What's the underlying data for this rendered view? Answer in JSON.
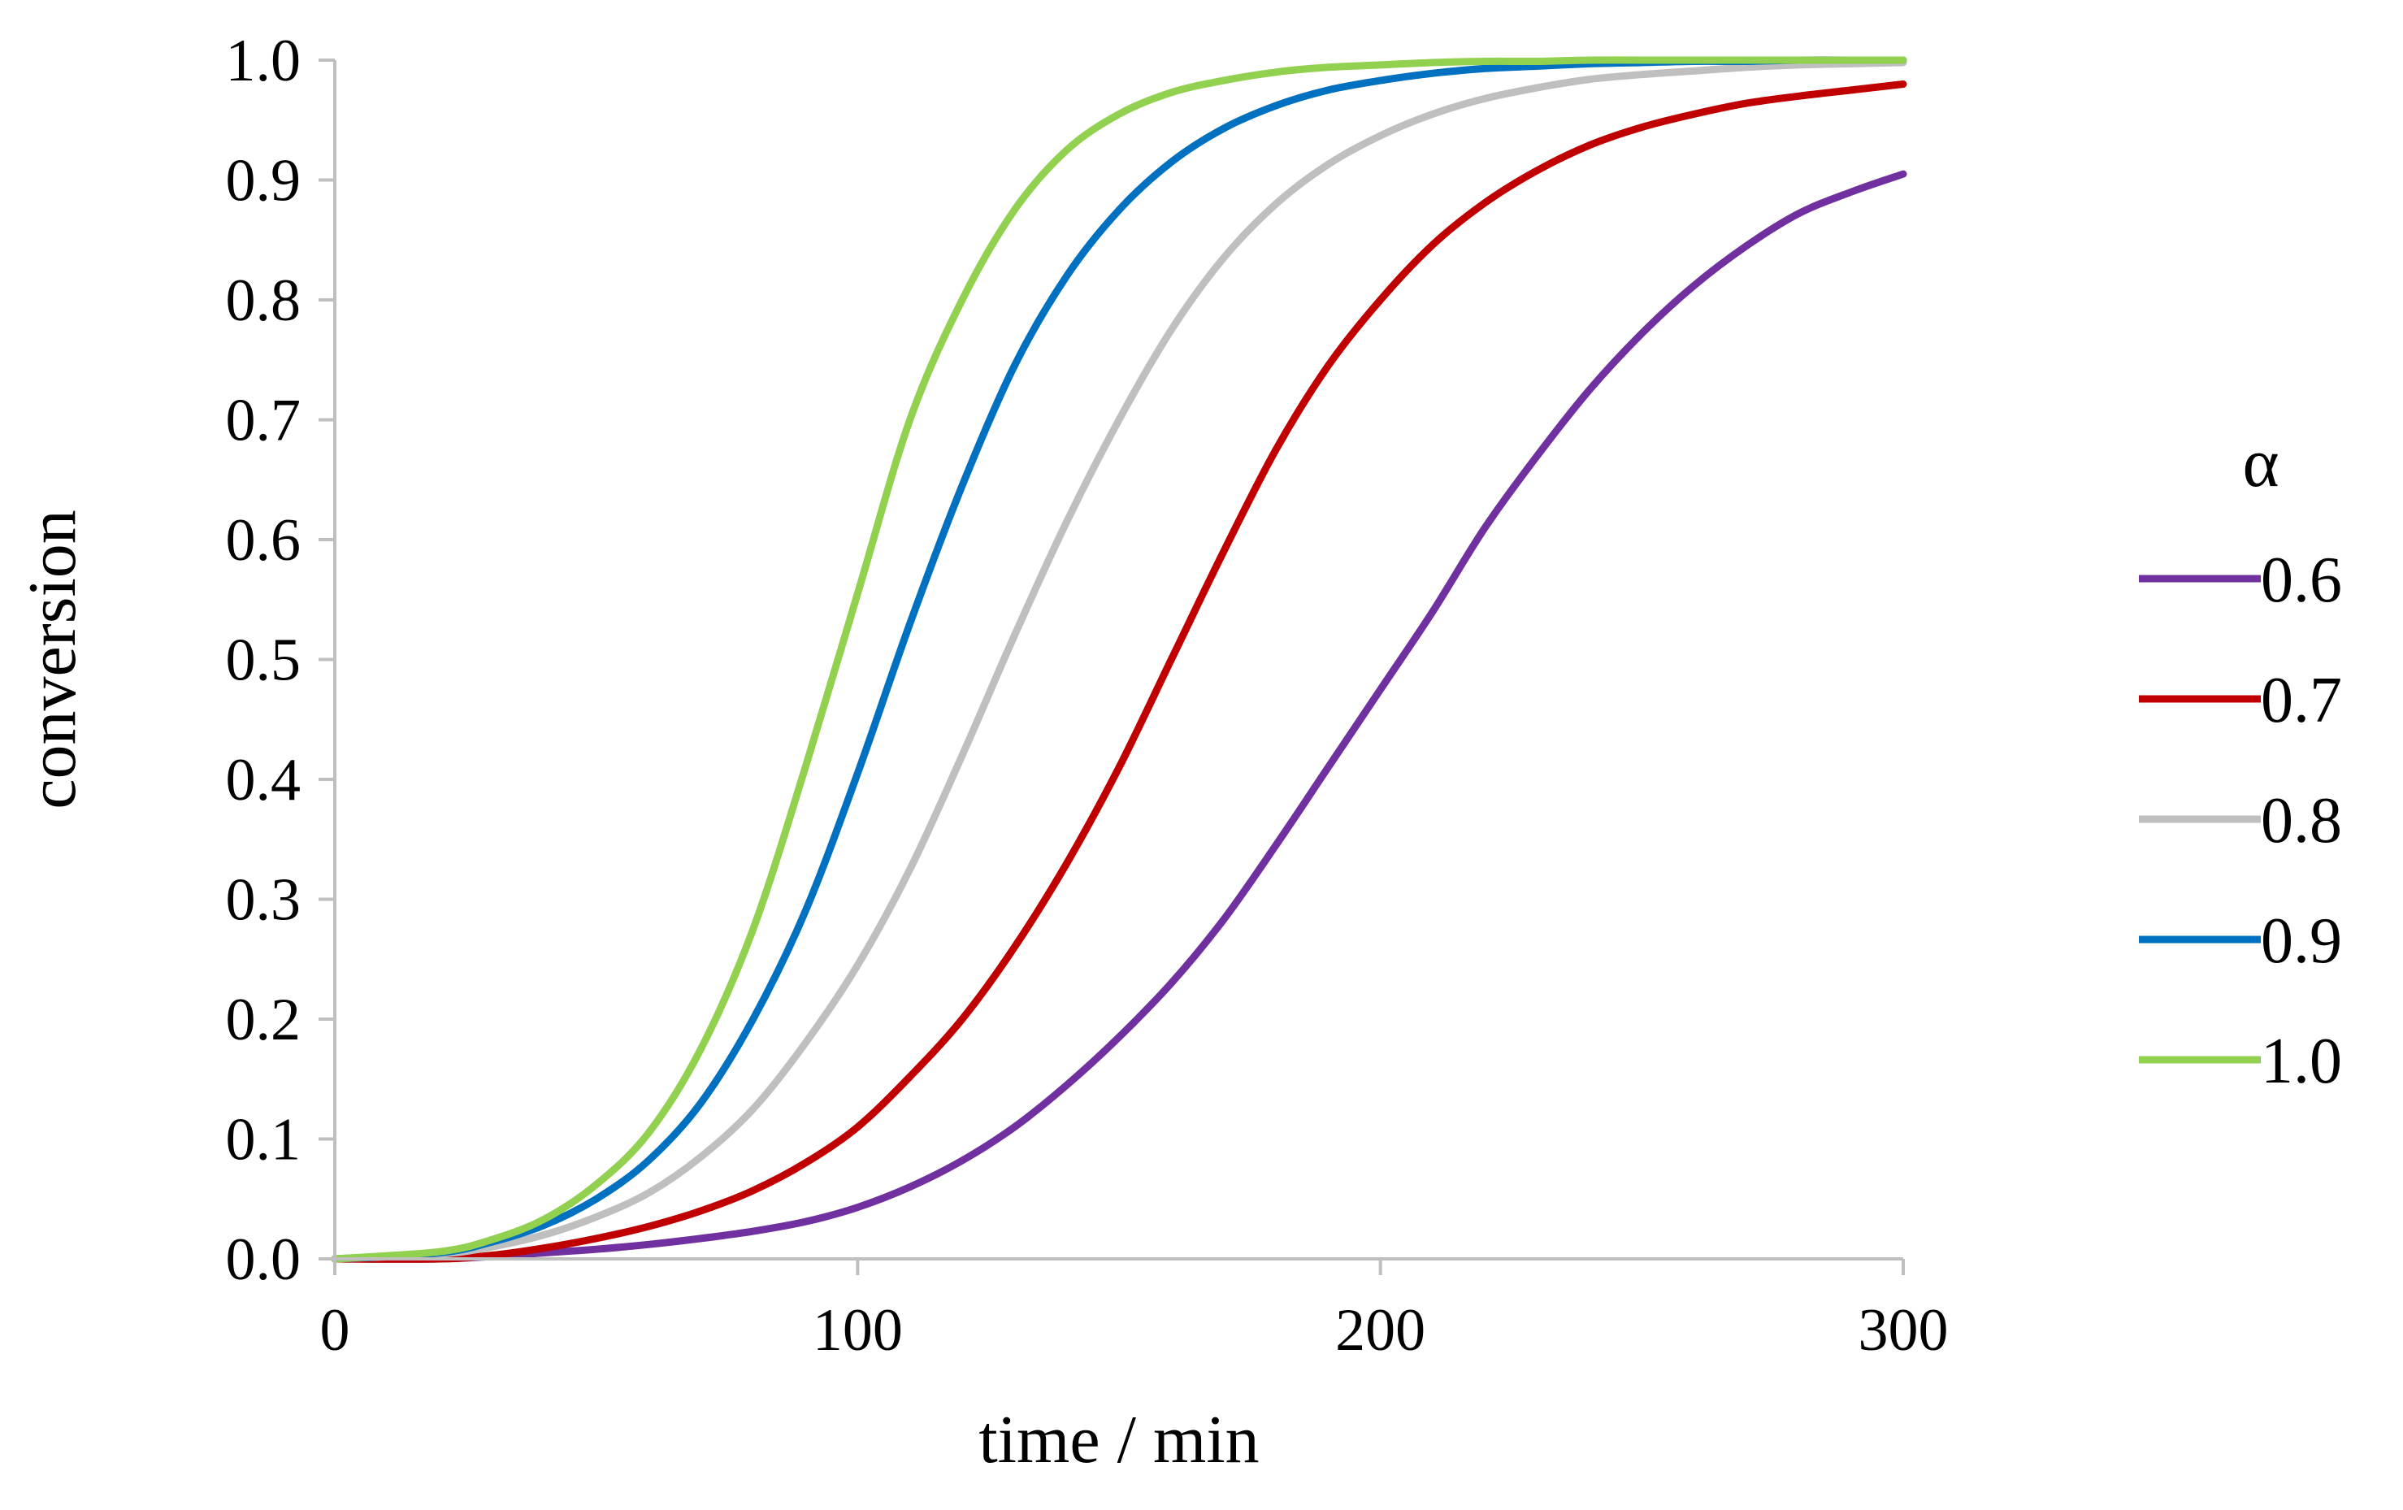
{
  "chart_data": {
    "type": "line",
    "title": "",
    "xlabel": "time / min",
    "ylabel": "conversion",
    "xlim": [
      0,
      300
    ],
    "ylim": [
      0,
      1
    ],
    "xticks": [
      0,
      100,
      200,
      300
    ],
    "xtick_labels": [
      "0",
      "100",
      "200",
      "300"
    ],
    "yticks": [
      0,
      0.1,
      0.2,
      0.3,
      0.4,
      0.5,
      0.6,
      0.7,
      0.8,
      0.9,
      1.0
    ],
    "ytick_labels": [
      "0.0",
      "0.1",
      "0.2",
      "0.3",
      "0.4",
      "0.5",
      "0.6",
      "0.7",
      "0.8",
      "0.9",
      "1.0"
    ],
    "grid": false,
    "legend": {
      "title": "α",
      "placement": "right"
    },
    "x": [
      0,
      20,
      30,
      40,
      50,
      60,
      70,
      80,
      90,
      100,
      110,
      120,
      130,
      140,
      150,
      160,
      170,
      180,
      190,
      200,
      210,
      220,
      230,
      240,
      250,
      260,
      270,
      280,
      290,
      300
    ],
    "series": [
      {
        "name": "0.6",
        "color": "#7030a0",
        "values": [
          0.0,
          0.0,
          0.002,
          0.005,
          0.008,
          0.012,
          0.017,
          0.023,
          0.031,
          0.043,
          0.06,
          0.082,
          0.11,
          0.145,
          0.185,
          0.23,
          0.283,
          0.345,
          0.41,
          0.475,
          0.54,
          0.61,
          0.67,
          0.725,
          0.772,
          0.812,
          0.845,
          0.872,
          0.89,
          0.905
        ]
      },
      {
        "name": "0.7",
        "color": "#c00000",
        "values": [
          0.0,
          0.0,
          0.003,
          0.009,
          0.017,
          0.027,
          0.04,
          0.057,
          0.08,
          0.11,
          0.152,
          0.2,
          0.26,
          0.33,
          0.41,
          0.5,
          0.59,
          0.675,
          0.745,
          0.8,
          0.846,
          0.881,
          0.908,
          0.929,
          0.944,
          0.955,
          0.964,
          0.97,
          0.975,
          0.98
        ]
      },
      {
        "name": "0.8",
        "color": "#bfbfbf",
        "values": [
          0.0,
          0.004,
          0.01,
          0.02,
          0.035,
          0.055,
          0.085,
          0.125,
          0.18,
          0.245,
          0.325,
          0.42,
          0.52,
          0.615,
          0.7,
          0.775,
          0.835,
          0.88,
          0.913,
          0.937,
          0.955,
          0.968,
          0.977,
          0.984,
          0.988,
          0.991,
          0.994,
          0.996,
          0.997,
          0.998
        ]
      },
      {
        "name": "0.9",
        "color": "#0070c0",
        "values": [
          0.0,
          0.005,
          0.014,
          0.028,
          0.05,
          0.082,
          0.13,
          0.2,
          0.29,
          0.405,
          0.53,
          0.645,
          0.745,
          0.82,
          0.875,
          0.915,
          0.943,
          0.962,
          0.975,
          0.983,
          0.989,
          0.993,
          0.995,
          0.997,
          0.998,
          0.999,
          0.999,
          1.0,
          1.0,
          1.0
        ]
      },
      {
        "name": "1.0",
        "color": "#92d050",
        "values": [
          0.0,
          0.006,
          0.016,
          0.033,
          0.062,
          0.105,
          0.175,
          0.275,
          0.41,
          0.555,
          0.7,
          0.8,
          0.875,
          0.925,
          0.955,
          0.973,
          0.983,
          0.99,
          0.994,
          0.996,
          0.998,
          0.999,
          0.999,
          1.0,
          1.0,
          1.0,
          1.0,
          1.0,
          1.0,
          1.0
        ]
      }
    ]
  }
}
